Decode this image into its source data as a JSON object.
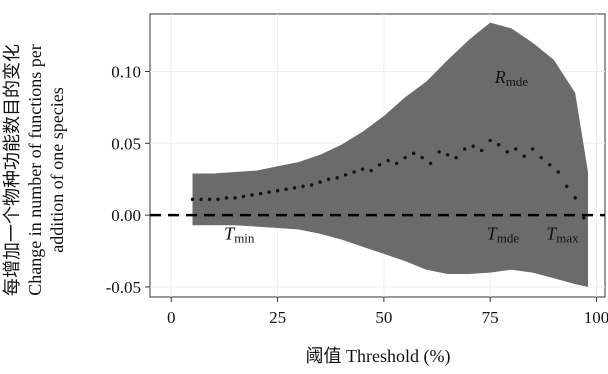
{
  "chart_data": {
    "type": "area",
    "title": "",
    "xlabel": "阈值 Threshold (%)",
    "ylabel_lines": [
      "每增加一个物种功能数目的变化",
      "Change in number of functions per",
      "addition of one species"
    ],
    "xlim": [
      -5,
      102
    ],
    "ylim": [
      -0.057,
      0.14
    ],
    "x_ticks": [
      0,
      25,
      50,
      75,
      100
    ],
    "y_ticks": [
      -0.05,
      0.0,
      0.05,
      0.1
    ],
    "y_tick_labels": [
      "-0.05",
      "0.00",
      "0.05",
      "0.10"
    ],
    "grid": true,
    "reference_line": {
      "y": 0,
      "style": "dashed"
    },
    "annotations": [
      {
        "main": "R",
        "sub": "mde",
        "x": 80,
        "y": 0.092
      },
      {
        "main": "T",
        "sub": "min",
        "x": 16,
        "y": -0.017
      },
      {
        "main": "T",
        "sub": "mde",
        "x": 78,
        "y": -0.017
      },
      {
        "main": "T",
        "sub": "max",
        "x": 92,
        "y": -0.017
      }
    ],
    "series": [
      {
        "kind": "band",
        "color": "#6b6b6b",
        "x": [
          5,
          10,
          15,
          20,
          25,
          30,
          35,
          40,
          45,
          50,
          55,
          60,
          65,
          70,
          75,
          80,
          85,
          90,
          95,
          98
        ],
        "upper": [
          0.029,
          0.029,
          0.03,
          0.031,
          0.034,
          0.037,
          0.042,
          0.049,
          0.058,
          0.069,
          0.082,
          0.093,
          0.108,
          0.122,
          0.134,
          0.13,
          0.12,
          0.108,
          0.085,
          0.03
        ],
        "lower": [
          -0.007,
          -0.007,
          -0.007,
          -0.008,
          -0.009,
          -0.01,
          -0.013,
          -0.017,
          -0.022,
          -0.027,
          -0.032,
          -0.038,
          -0.041,
          -0.041,
          -0.04,
          -0.038,
          -0.04,
          -0.044,
          -0.048,
          -0.05
        ]
      },
      {
        "kind": "points",
        "color": "#111111",
        "x": [
          5,
          7,
          9,
          11,
          13,
          15,
          17,
          19,
          21,
          23,
          25,
          27,
          29,
          31,
          33,
          35,
          37,
          39,
          41,
          43,
          45,
          47,
          49,
          51,
          53,
          55,
          57,
          59,
          61,
          63,
          65,
          67,
          69,
          71,
          73,
          75,
          77,
          79,
          81,
          83,
          85,
          87,
          89,
          91,
          93,
          95,
          97
        ],
        "y": [
          0.011,
          0.011,
          0.011,
          0.011,
          0.012,
          0.012,
          0.013,
          0.014,
          0.015,
          0.016,
          0.017,
          0.018,
          0.019,
          0.02,
          0.021,
          0.023,
          0.025,
          0.026,
          0.028,
          0.03,
          0.032,
          0.031,
          0.035,
          0.038,
          0.036,
          0.04,
          0.043,
          0.04,
          0.036,
          0.044,
          0.042,
          0.04,
          0.046,
          0.048,
          0.045,
          0.052,
          0.049,
          0.044,
          0.046,
          0.041,
          0.046,
          0.04,
          0.035,
          0.03,
          0.02,
          0.012,
          -0.002
        ]
      }
    ]
  }
}
